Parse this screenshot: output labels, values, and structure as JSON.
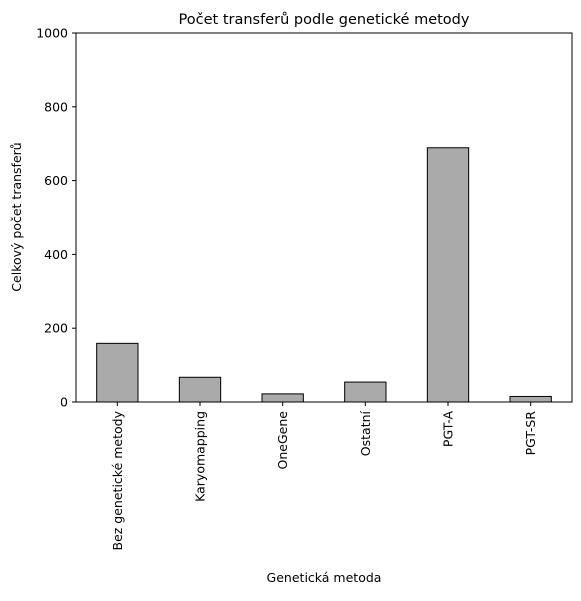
{
  "chart_data": {
    "type": "bar",
    "title": "Počet transferů podle genetické metody",
    "xlabel": "Genetická metoda",
    "ylabel": "Celkový počet transferů",
    "categories": [
      "Bez genetické metody",
      "Karyomapping",
      "OneGene",
      "Ostatní",
      "PGT-A",
      "PGT-SR"
    ],
    "values": [
      159,
      67,
      22,
      54,
      689,
      15
    ],
    "ylim": [
      0,
      1000
    ],
    "yticks": [
      0,
      200,
      400,
      600,
      800,
      1000
    ],
    "grid": false,
    "legend": "none",
    "bar_color": "#aaaaaa",
    "edge_color": "#000000"
  }
}
